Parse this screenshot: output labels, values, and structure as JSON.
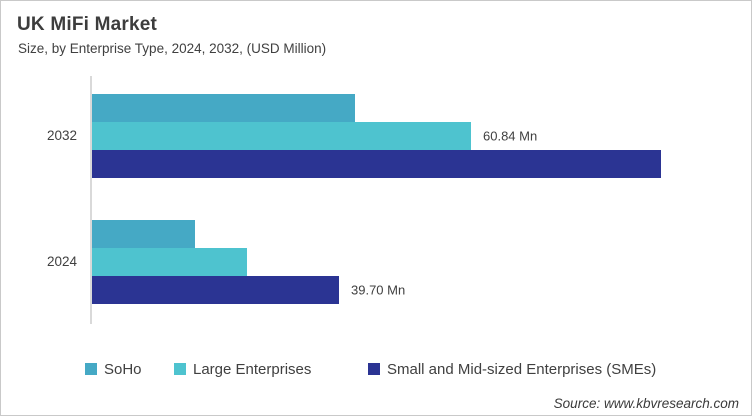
{
  "header": {
    "title": "UK MiFi Market",
    "subtitle": "Size, by Enterprise Type, 2024, 2032, (USD Million)"
  },
  "chart_data": {
    "type": "bar",
    "orientation": "horizontal",
    "unit": "USD Million",
    "title": "UK MiFi Market",
    "subtitle": "Size, by Enterprise Type, 2024, 2032, (USD Million)",
    "categories": [
      "2032",
      "2024"
    ],
    "series": [
      {
        "name": "SoHo",
        "color": "#45A9C5",
        "values": [
          42.2,
          16.6
        ]
      },
      {
        "name": "Large Enterprises",
        "color": "#4EC3CF",
        "values": [
          60.84,
          24.8
        ]
      },
      {
        "name": "Small and Mid-sized Enterprises (SMEs)",
        "color": "#2B3493",
        "values": [
          91.3,
          39.7
        ]
      }
    ],
    "data_labels": [
      {
        "category": "2032",
        "series": "Large Enterprises",
        "text": "60.84 Mn"
      },
      {
        "category": "2024",
        "series": "Small and Mid-sized Enterprises (SMEs)",
        "text": "39.70 Mn"
      }
    ],
    "xlim": [
      0,
      106
    ],
    "gridlines": false,
    "value_axis_visible": false,
    "legend_position": "bottom"
  },
  "footer": {
    "source": "Source: www.kbvresearch.com"
  }
}
